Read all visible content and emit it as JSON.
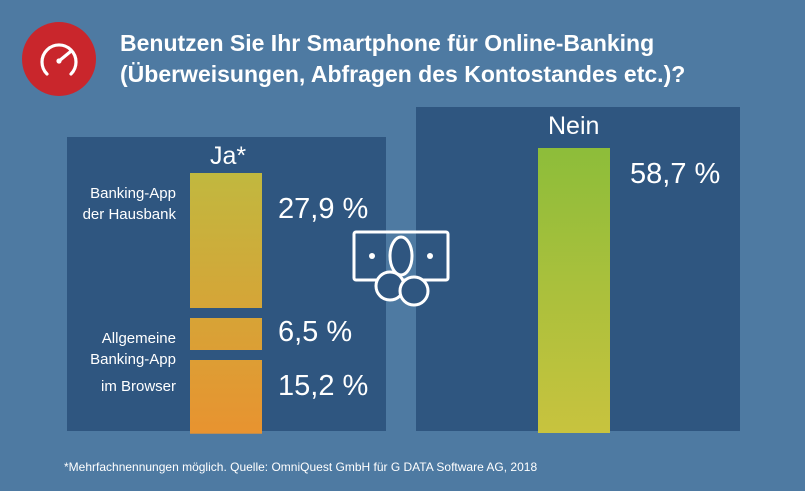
{
  "title": {
    "line1": "Benutzen Sie Ihr Smartphone für Online-Banking",
    "line2": "(Überweisungen, Abfragen des Kontostandes etc.)?"
  },
  "logo_icon": "speedometer-icon",
  "center_icon": "banknote-coins-icon",
  "footnote": "*Mehrfachnennungen möglich. Quelle: OmniQuest GmbH für G DATA Software AG, 2018",
  "colors": {
    "background": "#4e7aa2",
    "panel": "#2f5680",
    "logo": "#c9262c",
    "ja_bar_top": "#c1b83f",
    "ja_bar_bottom": "#e89330",
    "nein_bar_top": "#8dbd3a",
    "nein_bar_bottom": "#c8c33e"
  },
  "chart_data": {
    "type": "bar",
    "groups": [
      {
        "label": "Ja*",
        "rows": [
          {
            "label_lines": [
              "Banking-App",
              "der Hausbank"
            ],
            "value": 27.9,
            "value_label": "27,9 %"
          },
          {
            "label_lines": [
              "Allgemeine",
              "Banking-App"
            ],
            "value": 6.5,
            "value_label": "6,5 %"
          },
          {
            "label_lines": [
              "im Browser"
            ],
            "value": 15.2,
            "value_label": "15,2 %"
          }
        ]
      },
      {
        "label": "Nein",
        "rows": [
          {
            "label_lines": [],
            "value": 58.7,
            "value_label": "58,7 %"
          }
        ]
      }
    ],
    "unit": "%"
  }
}
